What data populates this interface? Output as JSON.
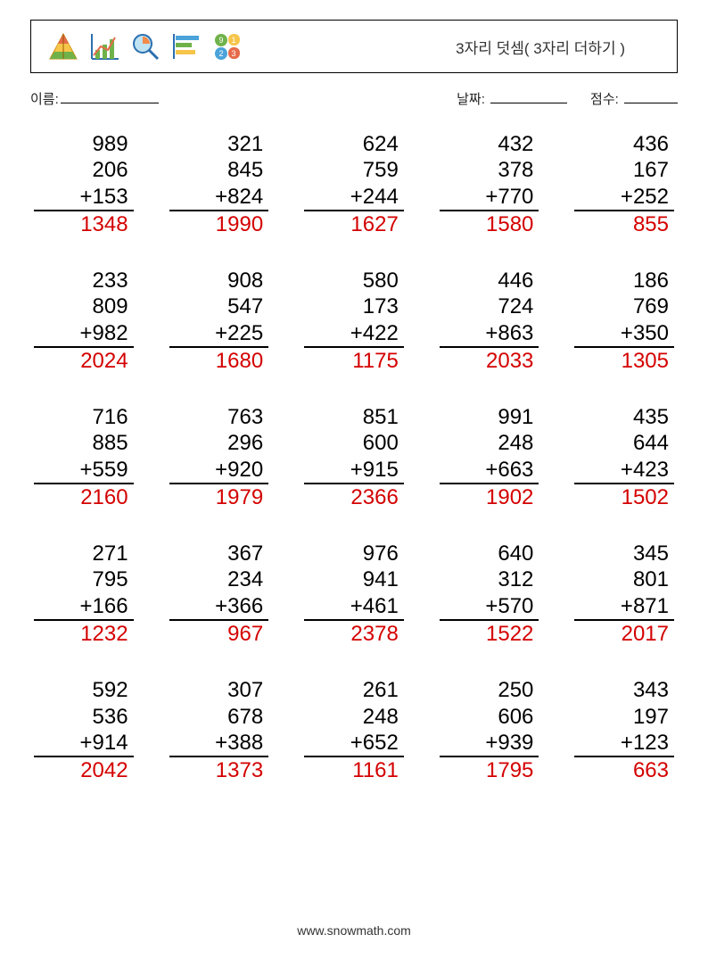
{
  "header": {
    "title": "3자리 덧셈( 3자리 더하기 )",
    "icons": [
      "pyramid-icon",
      "chart-icon",
      "magnifier-icon",
      "bars-icon",
      "shapes-icon"
    ]
  },
  "fields": {
    "name_label": "이름:",
    "date_label": "날짜:",
    "score_label": "점수:"
  },
  "style": {
    "operand_color": "#000000",
    "answer_color": "#d40000",
    "operator": "+",
    "font_size": 24,
    "problem_width_ch": 5,
    "grid_cols": 5,
    "grid_rows": 5
  },
  "problems": [
    {
      "c": [
        "989",
        "206",
        "153"
      ],
      "a": "1348"
    },
    {
      "c": [
        "321",
        "845",
        "824"
      ],
      "a": "1990"
    },
    {
      "c": [
        "624",
        "759",
        "244"
      ],
      "a": "1627"
    },
    {
      "c": [
        "432",
        "378",
        "770"
      ],
      "a": "1580"
    },
    {
      "c": [
        "436",
        "167",
        "252"
      ],
      "a": "855"
    },
    {
      "c": [
        "233",
        "809",
        "982"
      ],
      "a": "2024"
    },
    {
      "c": [
        "908",
        "547",
        "225"
      ],
      "a": "1680"
    },
    {
      "c": [
        "580",
        "173",
        "422"
      ],
      "a": "1175"
    },
    {
      "c": [
        "446",
        "724",
        "863"
      ],
      "a": "2033"
    },
    {
      "c": [
        "186",
        "769",
        "350"
      ],
      "a": "1305"
    },
    {
      "c": [
        "716",
        "885",
        "559"
      ],
      "a": "2160"
    },
    {
      "c": [
        "763",
        "296",
        "920"
      ],
      "a": "1979"
    },
    {
      "c": [
        "851",
        "600",
        "915"
      ],
      "a": "2366"
    },
    {
      "c": [
        "991",
        "248",
        "663"
      ],
      "a": "1902"
    },
    {
      "c": [
        "435",
        "644",
        "423"
      ],
      "a": "1502"
    },
    {
      "c": [
        "271",
        "795",
        "166"
      ],
      "a": "1232"
    },
    {
      "c": [
        "367",
        "234",
        "366"
      ],
      "a": "967"
    },
    {
      "c": [
        "976",
        "941",
        "461"
      ],
      "a": "2378"
    },
    {
      "c": [
        "640",
        "312",
        "570"
      ],
      "a": "1522"
    },
    {
      "c": [
        "345",
        "801",
        "871"
      ],
      "a": "2017"
    },
    {
      "c": [
        "592",
        "536",
        "914"
      ],
      "a": "2042"
    },
    {
      "c": [
        "307",
        "678",
        "388"
      ],
      "a": "1373"
    },
    {
      "c": [
        "261",
        "248",
        "652"
      ],
      "a": "1161"
    },
    {
      "c": [
        "250",
        "606",
        "939"
      ],
      "a": "1795"
    },
    {
      "c": [
        "343",
        "197",
        "123"
      ],
      "a": "663"
    }
  ],
  "footer": {
    "url": "www.snowmath.com"
  }
}
